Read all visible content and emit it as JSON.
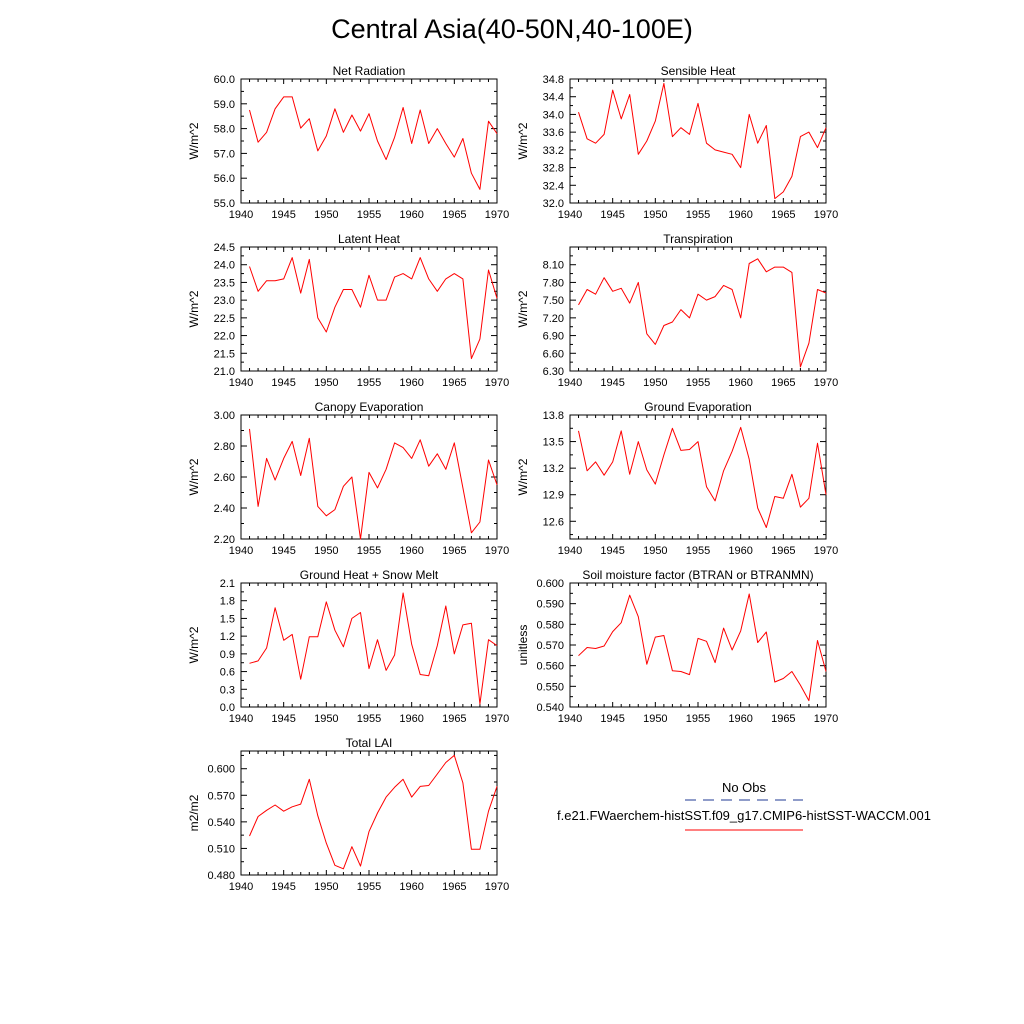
{
  "page_title": "Central Asia(40-50N,40-100E)",
  "legend": {
    "obs_label": "No Obs",
    "obs_color": "#1f3a93",
    "model_label": "f.e21.FWaerchem-histSST.f09_g17.CMIP6-histSST-WACCM.001",
    "model_color": "#ff0000"
  },
  "chart_data": [
    {
      "type": "line",
      "title": "Net Radiation",
      "ylabel": "W/m^2",
      "xlim": [
        1940,
        1970
      ],
      "ylim": [
        55.0,
        60.0
      ],
      "xticks": [
        "1940",
        "1945",
        "1950",
        "1955",
        "1960",
        "1965",
        "1970"
      ],
      "yticks": [
        "55.0",
        "56.0",
        "57.0",
        "58.0",
        "59.0",
        "60.0"
      ],
      "series": [
        {
          "x": [
            1941,
            1942,
            1943,
            1944,
            1945,
            1946,
            1947,
            1948,
            1949,
            1950,
            1951,
            1952,
            1953,
            1954,
            1955,
            1956,
            1957,
            1958,
            1959,
            1960,
            1961,
            1962,
            1963,
            1964,
            1965,
            1966,
            1967,
            1968,
            1969,
            1970
          ],
          "values": [
            58.75,
            57.45,
            57.85,
            58.8,
            59.28,
            59.28,
            58.02,
            58.4,
            57.1,
            57.7,
            58.8,
            57.85,
            58.55,
            57.9,
            58.6,
            57.5,
            56.75,
            57.65,
            58.85,
            57.4,
            58.75,
            57.4,
            58.0,
            57.4,
            56.85,
            57.6,
            56.2,
            55.55,
            58.3,
            57.8
          ]
        }
      ]
    },
    {
      "type": "line",
      "title": "Sensible Heat",
      "ylabel": "W/m^2",
      "xlim": [
        1940,
        1970
      ],
      "ylim": [
        32.0,
        34.8
      ],
      "xticks": [
        "1940",
        "1945",
        "1950",
        "1955",
        "1960",
        "1965",
        "1970"
      ],
      "yticks": [
        "32.0",
        "32.4",
        "32.8",
        "33.2",
        "33.6",
        "34.0",
        "34.4",
        "34.8"
      ],
      "series": [
        {
          "x": [
            1941,
            1942,
            1943,
            1944,
            1945,
            1946,
            1947,
            1948,
            1949,
            1950,
            1951,
            1952,
            1953,
            1954,
            1955,
            1956,
            1957,
            1958,
            1959,
            1960,
            1961,
            1962,
            1963,
            1964,
            1965,
            1966,
            1967,
            1968,
            1969,
            1970
          ],
          "values": [
            34.05,
            33.45,
            33.35,
            33.55,
            34.55,
            33.9,
            34.45,
            33.1,
            33.4,
            33.85,
            34.7,
            33.5,
            33.7,
            33.55,
            34.25,
            33.35,
            33.2,
            33.15,
            33.1,
            32.8,
            34.0,
            33.35,
            33.75,
            32.1,
            32.25,
            32.6,
            33.5,
            33.6,
            33.25,
            33.7
          ]
        }
      ]
    },
    {
      "type": "line",
      "title": "Latent Heat",
      "ylabel": "W/m^2",
      "xlim": [
        1940,
        1970
      ],
      "ylim": [
        21.0,
        24.5
      ],
      "xticks": [
        "1940",
        "1945",
        "1950",
        "1955",
        "1960",
        "1965",
        "1970"
      ],
      "yticks": [
        "21.0",
        "21.5",
        "22.0",
        "22.5",
        "23.0",
        "23.5",
        "24.0",
        "24.5"
      ],
      "series": [
        {
          "x": [
            1941,
            1942,
            1943,
            1944,
            1945,
            1946,
            1947,
            1948,
            1949,
            1950,
            1951,
            1952,
            1953,
            1954,
            1955,
            1956,
            1957,
            1958,
            1959,
            1960,
            1961,
            1962,
            1963,
            1964,
            1965,
            1966,
            1967,
            1968,
            1969,
            1970
          ],
          "values": [
            23.95,
            23.25,
            23.55,
            23.55,
            23.6,
            24.2,
            23.2,
            24.15,
            22.5,
            22.1,
            22.8,
            23.3,
            23.3,
            22.8,
            23.7,
            23.0,
            23.0,
            23.65,
            23.75,
            23.6,
            24.2,
            23.6,
            23.25,
            23.6,
            23.75,
            23.6,
            21.35,
            21.9,
            23.85,
            23.05
          ]
        }
      ]
    },
    {
      "type": "line",
      "title": "Transpiration",
      "ylabel": "W/m^2",
      "xlim": [
        1940,
        1970
      ],
      "ylim": [
        6.3,
        8.4
      ],
      "xticks": [
        "1940",
        "1945",
        "1950",
        "1955",
        "1960",
        "1965",
        "1970"
      ],
      "yticks": [
        "6.30",
        "6.60",
        "6.90",
        "7.20",
        "7.50",
        "7.80",
        "8.10"
      ],
      "series": [
        {
          "x": [
            1941,
            1942,
            1943,
            1944,
            1945,
            1946,
            1947,
            1948,
            1949,
            1950,
            1951,
            1952,
            1953,
            1954,
            1955,
            1956,
            1957,
            1958,
            1959,
            1960,
            1961,
            1962,
            1963,
            1964,
            1965,
            1966,
            1967,
            1968,
            1969,
            1970
          ],
          "values": [
            7.42,
            7.68,
            7.6,
            7.88,
            7.65,
            7.7,
            7.45,
            7.8,
            6.93,
            6.75,
            7.07,
            7.13,
            7.34,
            7.2,
            7.6,
            7.5,
            7.56,
            7.75,
            7.68,
            7.2,
            8.12,
            8.2,
            7.98,
            8.06,
            8.06,
            7.97,
            6.37,
            6.77,
            7.68,
            7.62
          ]
        }
      ]
    },
    {
      "type": "line",
      "title": "Canopy Evaporation",
      "ylabel": "W/m^2",
      "xlim": [
        1940,
        1970
      ],
      "ylim": [
        2.2,
        3.0
      ],
      "xticks": [
        "1940",
        "1945",
        "1950",
        "1955",
        "1960",
        "1965",
        "1970"
      ],
      "yticks": [
        "2.20",
        "2.40",
        "2.60",
        "2.80",
        "3.00"
      ],
      "series": [
        {
          "x": [
            1941,
            1942,
            1943,
            1944,
            1945,
            1946,
            1947,
            1948,
            1949,
            1950,
            1951,
            1952,
            1953,
            1954,
            1955,
            1956,
            1957,
            1958,
            1959,
            1960,
            1961,
            1962,
            1963,
            1964,
            1965,
            1966,
            1967,
            1968,
            1969,
            1970
          ],
          "values": [
            2.91,
            2.41,
            2.72,
            2.58,
            2.72,
            2.83,
            2.61,
            2.85,
            2.41,
            2.35,
            2.39,
            2.54,
            2.6,
            2.2,
            2.63,
            2.53,
            2.65,
            2.82,
            2.79,
            2.72,
            2.84,
            2.67,
            2.75,
            2.65,
            2.82,
            2.53,
            2.24,
            2.31,
            2.71,
            2.55
          ]
        }
      ]
    },
    {
      "type": "line",
      "title": "Ground Evaporation",
      "ylabel": "W/m^2",
      "xlim": [
        1940,
        1970
      ],
      "ylim": [
        12.4,
        13.8
      ],
      "xticks": [
        "1940",
        "1945",
        "1950",
        "1955",
        "1960",
        "1965",
        "1970"
      ],
      "yticks": [
        "12.6",
        "12.9",
        "13.2",
        "13.5",
        "13.8"
      ],
      "series": [
        {
          "x": [
            1941,
            1942,
            1943,
            1944,
            1945,
            1946,
            1947,
            1948,
            1949,
            1950,
            1951,
            1952,
            1953,
            1954,
            1955,
            1956,
            1957,
            1958,
            1959,
            1960,
            1961,
            1962,
            1963,
            1964,
            1965,
            1966,
            1967,
            1968,
            1969,
            1970
          ],
          "values": [
            13.62,
            13.17,
            13.27,
            13.12,
            13.27,
            13.62,
            13.13,
            13.5,
            13.18,
            13.02,
            13.35,
            13.65,
            13.4,
            13.41,
            13.5,
            12.99,
            12.83,
            13.17,
            13.39,
            13.66,
            13.3,
            12.75,
            12.53,
            12.88,
            12.86,
            13.13,
            12.76,
            12.86,
            13.48,
            12.9
          ]
        }
      ]
    },
    {
      "type": "line",
      "title": "Ground Heat + Snow Melt",
      "ylabel": "W/m^2",
      "xlim": [
        1940,
        1970
      ],
      "ylim": [
        0.0,
        2.1
      ],
      "xticks": [
        "1940",
        "1945",
        "1950",
        "1955",
        "1960",
        "1965",
        "1970"
      ],
      "yticks": [
        "0.0",
        "0.3",
        "0.6",
        "0.9",
        "1.2",
        "1.5",
        "1.8",
        "2.1"
      ],
      "series": [
        {
          "x": [
            1941,
            1942,
            1943,
            1944,
            1945,
            1946,
            1947,
            1948,
            1949,
            1950,
            1951,
            1952,
            1953,
            1954,
            1955,
            1956,
            1957,
            1958,
            1959,
            1960,
            1961,
            1962,
            1963,
            1964,
            1965,
            1966,
            1967,
            1968,
            1969,
            1970
          ],
          "values": [
            0.74,
            0.78,
            1.0,
            1.68,
            1.13,
            1.23,
            0.47,
            1.19,
            1.19,
            1.78,
            1.3,
            1.02,
            1.5,
            1.6,
            0.65,
            1.14,
            0.62,
            0.88,
            1.93,
            1.06,
            0.55,
            0.53,
            1.04,
            1.71,
            0.9,
            1.39,
            1.42,
            0.05,
            1.14,
            1.04
          ]
        }
      ]
    },
    {
      "type": "line",
      "title": "Soil moisture factor (BTRAN or BTRANMN)",
      "ylabel": "unitless",
      "xlim": [
        1940,
        1970
      ],
      "ylim": [
        0.54,
        0.6
      ],
      "xticks": [
        "1940",
        "1945",
        "1950",
        "1955",
        "1960",
        "1965",
        "1970"
      ],
      "yticks": [
        "0.540",
        "0.550",
        "0.560",
        "0.570",
        "0.580",
        "0.590",
        "0.600"
      ],
      "series": [
        {
          "x": [
            1941,
            1942,
            1943,
            1944,
            1945,
            1946,
            1947,
            1948,
            1949,
            1950,
            1951,
            1952,
            1953,
            1954,
            1955,
            1956,
            1957,
            1958,
            1959,
            1960,
            1961,
            1962,
            1963,
            1964,
            1965,
            1966,
            1967,
            1968,
            1969,
            1970
          ],
          "values": [
            0.5648,
            0.5688,
            0.5683,
            0.5695,
            0.5765,
            0.5808,
            0.5941,
            0.5837,
            0.5607,
            0.5738,
            0.5746,
            0.5575,
            0.5572,
            0.5557,
            0.5732,
            0.5718,
            0.5615,
            0.5782,
            0.5676,
            0.5768,
            0.5947,
            0.5712,
            0.5763,
            0.5521,
            0.5538,
            0.5572,
            0.5506,
            0.5431,
            0.5722,
            0.5572
          ]
        }
      ]
    },
    {
      "type": "line",
      "title": "Total LAI",
      "ylabel": "m2/m2",
      "xlim": [
        1940,
        1970
      ],
      "ylim": [
        0.48,
        0.62
      ],
      "xticks": [
        "1940",
        "1945",
        "1950",
        "1955",
        "1960",
        "1965",
        "1970"
      ],
      "yticks": [
        "0.480",
        "0.510",
        "0.540",
        "0.570",
        "0.600"
      ],
      "series": [
        {
          "x": [
            1941,
            1942,
            1943,
            1944,
            1945,
            1946,
            1947,
            1948,
            1949,
            1950,
            1951,
            1952,
            1953,
            1954,
            1955,
            1956,
            1957,
            1958,
            1959,
            1960,
            1961,
            1962,
            1963,
            1964,
            1965,
            1966,
            1967,
            1968,
            1969,
            1970
          ],
          "values": [
            0.524,
            0.546,
            0.553,
            0.559,
            0.552,
            0.557,
            0.56,
            0.588,
            0.547,
            0.516,
            0.491,
            0.487,
            0.512,
            0.49,
            0.529,
            0.55,
            0.568,
            0.579,
            0.588,
            0.568,
            0.58,
            0.581,
            0.594,
            0.607,
            0.615,
            0.584,
            0.509,
            0.509,
            0.552,
            0.58
          ]
        }
      ]
    }
  ]
}
